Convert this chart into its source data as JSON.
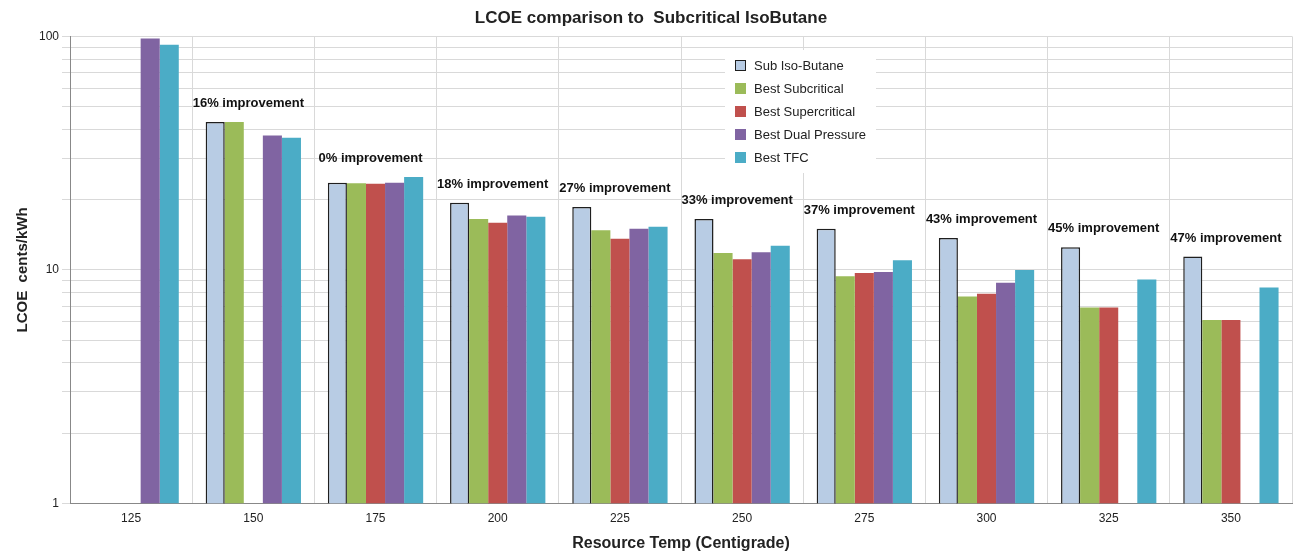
{
  "chart_data": {
    "type": "bar",
    "title": "LCOE comparison to  Subcritical IsoButane",
    "xlabel": "Resource Temp (Centigrade)",
    "ylabel": "LCOE  cents/kWh",
    "categories": [
      "125",
      "150",
      "175",
      "200",
      "225",
      "250",
      "275",
      "300",
      "325",
      "350"
    ],
    "series": [
      {
        "name": "Sub Iso-Butane",
        "color": "#b8cce4",
        "values": [
          null,
          43,
          23.6,
          19.4,
          18.6,
          16.5,
          15,
          13.7,
          12.5,
          11.4
        ]
      },
      {
        "name": "Best Subcritical",
        "color": "#9bbb59",
        "values": [
          null,
          43,
          23.5,
          16.5,
          14.8,
          11.8,
          9.4,
          7.7,
          6.9,
          6.1
        ]
      },
      {
        "name": "Best Supercritical",
        "color": "#c0504d",
        "values": [
          null,
          null,
          23.4,
          15.9,
          13.6,
          11.1,
          9.7,
          7.9,
          6.9,
          6.1
        ]
      },
      {
        "name": "Best Dual Pressure",
        "color": "#8064a2",
        "values": [
          98,
          37.6,
          23.6,
          17.1,
          15,
          11.9,
          9.8,
          8.8,
          null,
          null
        ]
      },
      {
        "name": "Best TFC",
        "color": "#4bacc6",
        "values": [
          92,
          36.8,
          25,
          16.9,
          15.3,
          12.7,
          11,
          10,
          9.1,
          8.4
        ]
      }
    ],
    "log": "y",
    "ylim": [
      1,
      100
    ],
    "yticks": [
      1,
      {
        "value": 2,
        "label": null
      },
      {
        "value": 3,
        "label": null
      },
      {
        "value": 4,
        "label": null
      },
      {
        "value": 5,
        "label": null
      },
      {
        "value": 6,
        "label": null
      },
      {
        "value": 7,
        "label": null
      },
      {
        "value": 8,
        "label": null
      },
      {
        "value": 9,
        "label": null
      },
      10,
      {
        "value": 20,
        "label": null
      },
      {
        "value": 30,
        "label": null
      },
      {
        "value": 40,
        "label": null
      },
      {
        "value": 50,
        "label": null
      },
      {
        "value": 60,
        "label": null
      },
      {
        "value": 70,
        "label": null
      },
      {
        "value": 80,
        "label": null
      },
      {
        "value": 90,
        "label": null
      },
      100
    ],
    "grid": true,
    "legend": "top right",
    "annotations": [
      "16% improvement",
      "0% improvement",
      "18% improvement",
      "27% improvement",
      "33% improvement",
      "37% improvement",
      "43% improvement",
      "45% improvement",
      "47% improvement"
    ]
  }
}
